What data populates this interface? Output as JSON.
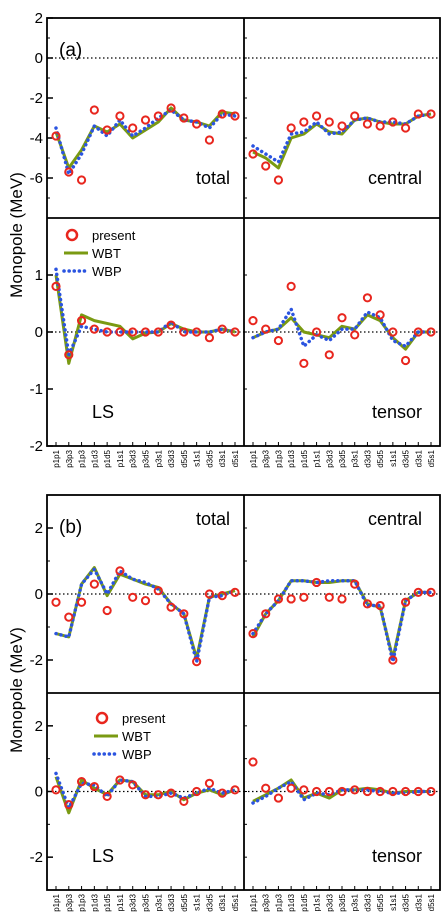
{
  "figure": {
    "ylabel": "Monopole (MeV)",
    "legend": [
      "present",
      "WBT",
      "WBP"
    ],
    "colors": {
      "present": "#e8261e",
      "WBT": "#7a9a12",
      "WBP": "#2b54e0",
      "zero_line": "#000000"
    }
  },
  "chart_data": [
    {
      "group": "(a)",
      "type": "line",
      "categories": [
        "p1p1",
        "p3p3",
        "p1p3",
        "p1d3",
        "p1d5",
        "p1s1",
        "p3d3",
        "p3d5",
        "p3s1",
        "d3d3",
        "d5d5",
        "s1s1",
        "d3d5",
        "d3s1",
        "d5s1"
      ],
      "legend_panel": "LS",
      "panels": [
        {
          "label": "total",
          "ylim": [
            -8,
            2
          ],
          "yticks": [
            2,
            0,
            -2,
            -4,
            -6
          ],
          "present": [
            -3.9,
            -5.7,
            -6.1,
            -2.6,
            -3.6,
            -2.9,
            -3.5,
            -3.1,
            -2.9,
            -2.5,
            -3.0,
            -3.3,
            -4.1,
            -2.8,
            -2.9
          ],
          "WBT": [
            -3.7,
            -5.5,
            -4.6,
            -3.4,
            -3.7,
            -3.3,
            -4.0,
            -3.6,
            -3.2,
            -2.5,
            -3.1,
            -3.2,
            -3.4,
            -2.7,
            -2.8
          ],
          "WBP": [
            -3.5,
            -5.8,
            -4.8,
            -3.4,
            -3.9,
            -3.1,
            -3.9,
            -3.5,
            -3.0,
            -2.6,
            -3.1,
            -3.2,
            -3.5,
            -2.8,
            -2.9
          ]
        },
        {
          "label": "central",
          "ylim": [
            -8,
            2
          ],
          "yticks": [],
          "present": [
            -4.8,
            -5.4,
            -6.1,
            -3.5,
            -3.2,
            -2.9,
            -3.2,
            -3.4,
            -2.9,
            -3.3,
            -3.4,
            -3.2,
            -3.5,
            -2.8,
            -2.8
          ],
          "WBT": [
            -4.7,
            -5.0,
            -5.5,
            -4.0,
            -3.8,
            -3.3,
            -3.7,
            -3.8,
            -3.1,
            -3.0,
            -3.2,
            -3.3,
            -3.3,
            -2.9,
            -2.8
          ],
          "WBP": [
            -4.4,
            -4.8,
            -5.2,
            -3.8,
            -3.7,
            -3.2,
            -3.8,
            -3.7,
            -3.1,
            -3.0,
            -3.2,
            -3.2,
            -3.3,
            -2.9,
            -2.8
          ]
        },
        {
          "label": "LS",
          "ylim": [
            -2,
            2
          ],
          "yticks": [
            1,
            0,
            -1,
            -2
          ],
          "present": [
            0.8,
            -0.4,
            0.2,
            0.05,
            0.0,
            0.0,
            0.0,
            0.0,
            0.0,
            0.12,
            0.0,
            0.0,
            -0.1,
            0.05,
            0.0
          ],
          "WBT": [
            1.0,
            -0.55,
            0.3,
            0.2,
            0.15,
            0.1,
            -0.12,
            -0.02,
            0.0,
            0.15,
            0.05,
            0.0,
            0.0,
            0.05,
            0.0
          ],
          "WBP": [
            1.1,
            -0.4,
            0.1,
            0.05,
            0.0,
            0.0,
            0.0,
            0.0,
            0.0,
            0.18,
            0.0,
            0.0,
            0.0,
            0.05,
            0.0
          ]
        },
        {
          "label": "tensor",
          "ylim": [
            -2,
            2
          ],
          "yticks": [],
          "present": [
            0.2,
            0.05,
            -0.15,
            0.8,
            -0.55,
            0.0,
            -0.4,
            0.25,
            -0.05,
            0.6,
            0.3,
            0.0,
            -0.5,
            0.0,
            0.0
          ],
          "WBT": [
            -0.1,
            0.0,
            0.05,
            0.25,
            0.0,
            -0.05,
            -0.1,
            0.1,
            0.05,
            0.3,
            0.2,
            -0.1,
            -0.3,
            0.0,
            0.0
          ],
          "WBP": [
            -0.1,
            0.0,
            0.05,
            0.4,
            -0.25,
            -0.05,
            -0.15,
            0.05,
            0.05,
            0.35,
            0.25,
            -0.15,
            -0.25,
            0.0,
            0.0
          ]
        }
      ]
    },
    {
      "group": "(b)",
      "type": "line",
      "categories": [
        "p1p1",
        "p3p3",
        "p1p3",
        "p1d3",
        "p1d5",
        "p1s1",
        "p3d3",
        "p3d5",
        "p3s1",
        "d3d3",
        "d5d5",
        "s1s1",
        "d3d5",
        "d3s1",
        "d5s1"
      ],
      "legend_panel": "LS",
      "panels": [
        {
          "label": "total",
          "ylim": [
            -3,
            3
          ],
          "yticks": [
            2,
            0,
            -2
          ],
          "present": [
            -0.25,
            -0.7,
            -0.25,
            0.3,
            -0.5,
            0.7,
            -0.1,
            -0.2,
            0.1,
            -0.4,
            -0.6,
            -2.05,
            0.0,
            -0.05,
            0.05
          ],
          "WBT": [
            -1.2,
            -1.3,
            0.3,
            0.8,
            -0.05,
            0.6,
            0.45,
            0.3,
            0.2,
            -0.3,
            -0.6,
            -1.95,
            -0.1,
            0.0,
            0.1
          ],
          "WBP": [
            -1.2,
            -1.3,
            0.3,
            0.75,
            0.0,
            0.7,
            0.45,
            0.35,
            0.15,
            -0.3,
            -0.6,
            -2.05,
            -0.1,
            -0.05,
            0.1
          ]
        },
        {
          "label": "central",
          "ylim": [
            -3,
            3
          ],
          "yticks": [],
          "present": [
            -1.2,
            -0.6,
            -0.15,
            -0.15,
            -0.1,
            0.35,
            -0.1,
            -0.15,
            0.3,
            -0.3,
            -0.35,
            -2.0,
            -0.25,
            0.05,
            0.05
          ],
          "WBT": [
            -1.3,
            -0.6,
            -0.2,
            0.4,
            0.4,
            0.35,
            0.35,
            0.4,
            0.4,
            -0.3,
            -0.4,
            -1.95,
            -0.2,
            0.05,
            0.05
          ],
          "WBP": [
            -1.2,
            -0.6,
            -0.2,
            0.4,
            0.4,
            0.35,
            0.4,
            0.4,
            0.4,
            -0.35,
            -0.35,
            -2.05,
            -0.2,
            0.05,
            0.05
          ]
        },
        {
          "label": "LS",
          "ylim": [
            -3,
            3
          ],
          "yticks": [
            2,
            0,
            -2
          ],
          "present": [
            0.05,
            -0.4,
            0.3,
            0.15,
            -0.15,
            0.35,
            0.2,
            -0.1,
            -0.1,
            -0.05,
            -0.3,
            0.0,
            0.25,
            -0.05,
            0.05
          ],
          "WBT": [
            0.45,
            -0.65,
            0.35,
            0.1,
            -0.1,
            0.35,
            0.3,
            -0.1,
            -0.1,
            0.0,
            -0.25,
            -0.05,
            0.05,
            -0.1,
            0.05
          ],
          "WBP": [
            0.55,
            -0.5,
            0.25,
            0.2,
            -0.15,
            0.35,
            0.3,
            -0.15,
            -0.15,
            -0.05,
            -0.2,
            -0.05,
            0.1,
            -0.05,
            0.05
          ]
        },
        {
          "label": "tensor",
          "ylim": [
            -3,
            3
          ],
          "yticks": [],
          "present": [
            0.9,
            0.1,
            -0.2,
            0.1,
            0.05,
            0.0,
            0.0,
            0.0,
            0.05,
            0.0,
            0.0,
            0.0,
            0.0,
            0.0,
            0.0
          ],
          "WBT": [
            -0.3,
            -0.1,
            0.1,
            0.35,
            -0.2,
            -0.05,
            -0.2,
            0.05,
            0.05,
            0.1,
            0.05,
            -0.05,
            0.0,
            0.0,
            0.0
          ],
          "WBP": [
            -0.35,
            -0.15,
            0.1,
            0.3,
            -0.25,
            -0.05,
            -0.1,
            0.05,
            0.05,
            0.05,
            0.0,
            -0.05,
            -0.05,
            0.0,
            0.0
          ]
        }
      ]
    }
  ]
}
